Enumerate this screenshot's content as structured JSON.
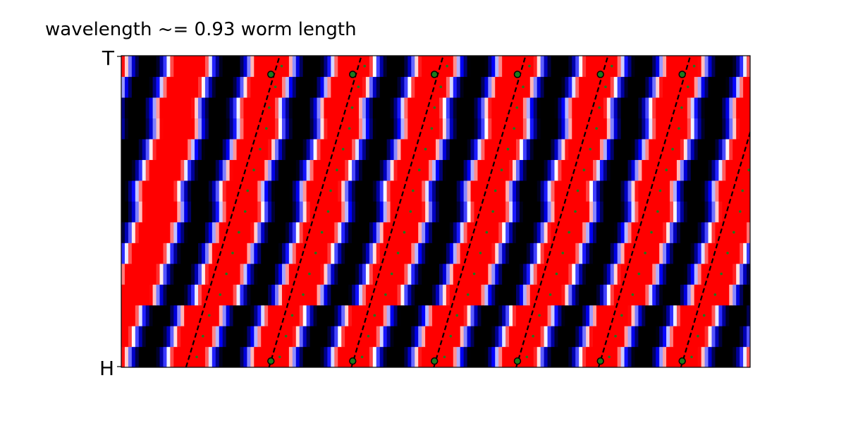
{
  "chart_data": {
    "type": "heatmap",
    "title": "wavelength ~= 0.93 worm length",
    "xlabel": "",
    "ylabel": "",
    "y_tick_labels": [
      "T",
      "H"
    ],
    "colormap": [
      "#000000",
      "#0000ff",
      "#ffffff",
      "#ff0000"
    ],
    "grid": false,
    "rows": 15,
    "x_range": [
      0,
      100
    ],
    "y_range": [
      0,
      15
    ],
    "marker_color": "#1e7a1e",
    "wave_period": 13.1,
    "row_phase_offsets": [
      0.0,
      0.0,
      0.0,
      1.5,
      1.5,
      1.5,
      1.5,
      1.5,
      0.3,
      0.3,
      0.3,
      0.3,
      -0.8,
      -0.8,
      -0.8
    ],
    "crest_lines": [
      {
        "x_head": 10.3,
        "x_tail": 25.2
      },
      {
        "x_head": 23.5,
        "x_tail": 38.2
      },
      {
        "x_head": 36.6,
        "x_tail": 51.2
      },
      {
        "x_head": 49.7,
        "x_tail": 64.3
      },
      {
        "x_head": 62.8,
        "x_tail": 77.4
      },
      {
        "x_head": 75.9,
        "x_tail": 90.5
      },
      {
        "x_head": 89.0,
        "x_tail": 103.6
      }
    ],
    "markers_tail": [
      23.8,
      36.8,
      49.8,
      63.0,
      76.2,
      89.2
    ],
    "markers_head": [
      23.8,
      36.8,
      49.8,
      63.0,
      76.2,
      89.2
    ]
  }
}
